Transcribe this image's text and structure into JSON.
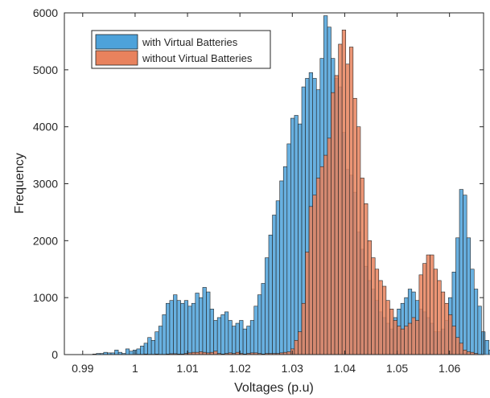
{
  "chart_data": {
    "type": "bar",
    "xlabel": "Voltages (p.u)",
    "ylabel": "Frequency",
    "xlim": [
      0.9865,
      1.0665
    ],
    "ylim": [
      0,
      6000
    ],
    "bin_width": 0.0007,
    "bin_start": 0.9919,
    "xticks": [
      0.99,
      1,
      1.01,
      1.02,
      1.03,
      1.04,
      1.05,
      1.06
    ],
    "xtick_labels": [
      "0.99",
      "1",
      "1.01",
      "1.02",
      "1.03",
      "1.04",
      "1.05",
      "1.06"
    ],
    "yticks": [
      0,
      1000,
      2000,
      3000,
      4000,
      5000,
      6000
    ],
    "ytick_labels": [
      "0",
      "1000",
      "2000",
      "3000",
      "4000",
      "5000",
      "6000"
    ],
    "legend_position": "top-left",
    "series": [
      {
        "name": "with Virtual Batteries",
        "color": "#4DA2DA",
        "values": [
          10,
          20,
          20,
          40,
          30,
          30,
          80,
          40,
          20,
          100,
          60,
          80,
          100,
          150,
          200,
          300,
          250,
          400,
          500,
          700,
          900,
          950,
          1050,
          950,
          900,
          950,
          850,
          900,
          1080,
          1000,
          1180,
          1100,
          800,
          600,
          650,
          700,
          750,
          600,
          500,
          550,
          600,
          450,
          500,
          600,
          850,
          1050,
          1250,
          1700,
          2100,
          2450,
          2700,
          3050,
          3300,
          3700,
          4150,
          4200,
          4050,
          4700,
          4850,
          4950,
          4850,
          4650,
          5200,
          5950,
          5750,
          5200,
          4850,
          4700,
          3900,
          3250,
          3150,
          2850,
          2150,
          1850,
          1550,
          1300,
          1150,
          950,
          750,
          650,
          550,
          450,
          650,
          800,
          900,
          1000,
          1150,
          1100,
          950,
          800,
          750,
          650,
          550,
          400,
          400,
          450,
          600,
          1000,
          1450,
          2050,
          2900,
          2800,
          2050,
          1500,
          1150,
          850,
          400,
          250,
          80,
          20
        ]
      },
      {
        "name": "without Virtual Batteries",
        "color": "#E8825D",
        "values": [
          0,
          0,
          0,
          0,
          0,
          0,
          0,
          0,
          0,
          0,
          0,
          0,
          5,
          5,
          10,
          5,
          5,
          10,
          5,
          5,
          10,
          15,
          15,
          10,
          10,
          20,
          30,
          40,
          40,
          50,
          40,
          30,
          40,
          60,
          20,
          10,
          20,
          30,
          20,
          40,
          20,
          10,
          20,
          30,
          30,
          20,
          10,
          20,
          20,
          20,
          20,
          30,
          40,
          50,
          100,
          250,
          400,
          900,
          1800,
          2600,
          2800,
          3100,
          3300,
          3500,
          3800,
          4600,
          4900,
          5450,
          5700,
          5100,
          5400,
          4500,
          4000,
          3100,
          2650,
          2000,
          1700,
          1500,
          1300,
          1200,
          950,
          800,
          600,
          500,
          450,
          500,
          550,
          650,
          600,
          1400,
          1600,
          1750,
          1750,
          1500,
          1300,
          1100,
          900,
          700,
          500,
          300,
          200,
          80,
          50,
          40,
          20,
          0,
          0,
          0
        ]
      }
    ]
  }
}
